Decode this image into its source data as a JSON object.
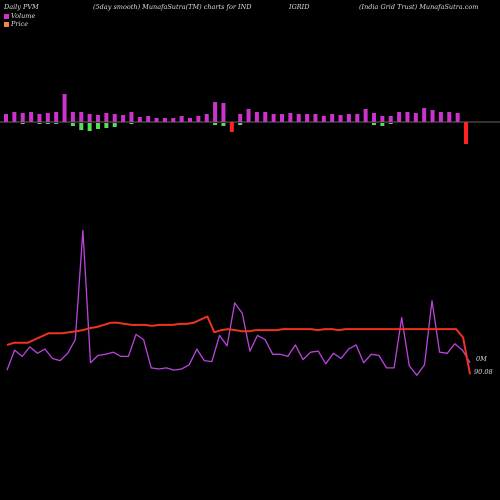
{
  "header": {
    "left": "Daily PVM",
    "mid1": "(5day smooth) MunafaSutra(TM) charts for IND",
    "mid2": "IGRID",
    "right": "(India Grid Trust) MunafaSutra.com"
  },
  "legend": {
    "volume_label": "Volume",
    "price_label": "Price"
  },
  "colors": {
    "background": "#000000",
    "volume_up": "#cc33cc",
    "volume_down": "#55dd55",
    "volume_neg": "#ff2222",
    "price_line": "#ee3322",
    "pvm_line": "#bb44dd",
    "baseline": "#cccccc"
  },
  "chart_data": {
    "type": "bar",
    "volume": {
      "values": [
        8,
        10,
        9,
        10,
        8,
        9,
        10,
        28,
        10,
        10,
        8,
        7,
        9,
        8,
        7,
        10,
        5,
        6,
        4,
        4,
        4,
        6,
        4,
        6,
        8,
        20,
        19,
        -10,
        8,
        13,
        10,
        10,
        8,
        8,
        9,
        8,
        8,
        8,
        6,
        8,
        7,
        8,
        8,
        13,
        9,
        6,
        6,
        10,
        10,
        9,
        14,
        12,
        10,
        10,
        9,
        -22
      ],
      "below_values": [
        0,
        0,
        -1,
        0,
        -1,
        -1,
        -1,
        0,
        -3,
        -7,
        -8,
        -6,
        -5,
        -4,
        0,
        -1,
        0,
        0,
        0,
        0,
        0,
        0,
        0,
        0,
        0,
        -2,
        -3,
        0,
        -2,
        0,
        0,
        0,
        0,
        0,
        0,
        0,
        0,
        0,
        0,
        0,
        0,
        0,
        0,
        0,
        -2,
        -3,
        -1,
        0,
        0,
        0,
        0,
        0,
        0,
        0,
        0,
        0
      ]
    },
    "series": [
      {
        "name": "Price",
        "values": [
          57,
          55,
          55,
          55,
          52,
          49,
          46,
          46,
          46,
          45,
          44,
          43,
          41,
          40,
          38,
          36,
          36,
          37,
          38,
          38,
          38,
          39,
          38,
          38,
          38,
          37,
          37,
          36,
          33,
          30,
          45,
          43,
          42,
          43,
          44,
          44,
          43,
          43,
          43,
          43,
          42,
          42,
          42,
          42,
          42,
          43,
          42,
          42,
          43,
          42,
          42,
          42,
          42,
          42,
          42,
          42,
          42,
          42,
          42,
          42,
          42,
          42,
          42,
          42,
          42,
          42,
          50,
          85
        ]
      },
      {
        "name": "PVM",
        "values": [
          81,
          62,
          68,
          59,
          65,
          61,
          70,
          72,
          65,
          52,
          -52,
          74,
          67,
          66,
          64,
          68,
          68,
          47,
          52,
          79,
          80,
          79,
          81,
          80,
          76,
          61,
          72,
          73,
          48,
          58,
          17,
          27,
          63,
          48,
          52,
          66,
          66,
          68,
          57,
          71,
          64,
          63,
          75,
          65,
          70,
          61,
          57,
          74,
          66,
          67,
          79,
          79,
          31,
          77,
          86,
          76,
          15,
          64,
          65,
          56,
          62,
          74
        ]
      }
    ],
    "axis_labels": {
      "volume_zero": "0M",
      "price_last": "90.08"
    },
    "grid": false
  }
}
